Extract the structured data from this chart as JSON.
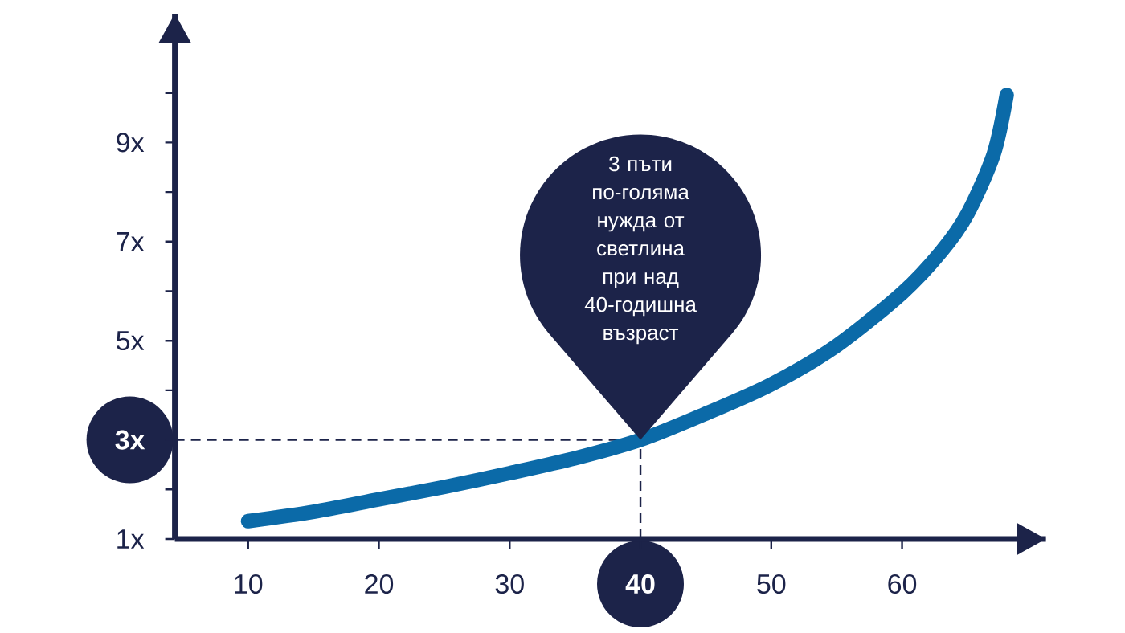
{
  "chart_data": {
    "type": "line",
    "x": [
      10,
      15,
      20,
      25,
      30,
      35,
      40,
      45,
      50,
      55,
      60,
      63,
      65,
      67,
      68
    ],
    "series": [
      {
        "color": "#0b6aa8",
        "values": [
          1.36,
          1.55,
          1.8,
          2.05,
          2.33,
          2.63,
          3,
          3.53,
          4.12,
          4.9,
          5.96,
          6.8,
          7.56,
          8.76,
          9.96
        ]
      }
    ],
    "xlim": [
      4.4,
      71
    ],
    "ylim": [
      1,
      11.6
    ],
    "xticks": [
      10,
      20,
      30,
      40,
      50,
      60
    ],
    "yticks": [
      {
        "value": 1,
        "label": "1x"
      },
      {
        "value": 2,
        "label": null
      },
      {
        "value": 3,
        "label": "3x"
      },
      {
        "value": 4,
        "label": null
      },
      {
        "value": 5,
        "label": "5x"
      },
      {
        "value": 6,
        "label": null
      },
      {
        "value": 7,
        "label": "7x"
      },
      {
        "value": 8,
        "label": null
      },
      {
        "value": 9,
        "label": "9x"
      },
      {
        "value": 10,
        "label": null
      }
    ],
    "ref_lines": [
      {
        "axis": "x",
        "value": 40,
        "line_style": "dashed"
      },
      {
        "axis": "y",
        "value": 3,
        "line_style": "dashed"
      }
    ],
    "annotations": [
      "3 пъти по-голяма нужда от светлина при над 40-годишна възраст"
    ]
  }
}
